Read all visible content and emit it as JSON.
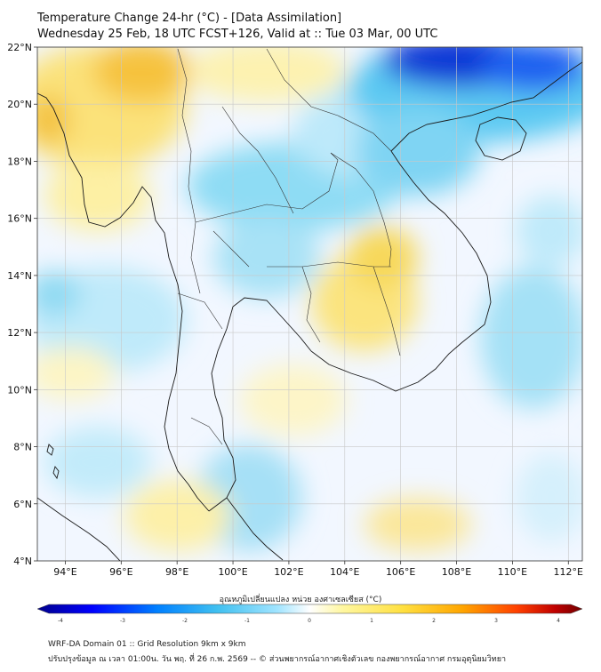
{
  "header": {
    "title": "Temperature Change 24-hr (°C) - [Data Assimilation]",
    "subtitle": "Wednesday 25 Feb, 18 UTC FCST+126, Valid at :: Tue 03 Mar, 00 UTC"
  },
  "map": {
    "lon_range": [
      93,
      112.5
    ],
    "lat_range": [
      4,
      22
    ],
    "lon_ticks": [
      "94°E",
      "96°E",
      "98°E",
      "100°E",
      "102°E",
      "104°E",
      "106°E",
      "108°E",
      "110°E",
      "112°E"
    ],
    "lat_ticks": [
      "22°N",
      "20°N",
      "18°N",
      "16°N",
      "14°N",
      "12°N",
      "10°N",
      "8°N",
      "6°N",
      "4°N"
    ]
  },
  "colorbar": {
    "label": "อุณหภูมิเปลี่ยนแปลง หน่วย องศาเซลเซียส (°C)",
    "ticks": [
      "-4",
      "-3",
      "-2",
      "-1",
      "0",
      "1",
      "2",
      "3",
      "4"
    ],
    "range": [
      -4,
      4
    ]
  },
  "footer": {
    "line1": "WRF-DA Domain 01 :: Grid Resolution 9km x 9km",
    "line2": "ปรับปรุงข้อมูล ณ เวลา 01:00น. วัน พฤ. ที่ 26 ก.พ. 2569 -- © ส่วนพยากรณ์อากาศเชิงตัวเลข กองพยากรณ์อากาศ กรมอุตุนิยมวิทยา"
  },
  "colors": {
    "scale": [
      "#00008b",
      "#0000ff",
      "#0080ff",
      "#40c0f0",
      "#a0e4ff",
      "#ffffff",
      "#fff7a0",
      "#ffe040",
      "#ffa500",
      "#ff4000",
      "#c00000",
      "#700000"
    ]
  }
}
